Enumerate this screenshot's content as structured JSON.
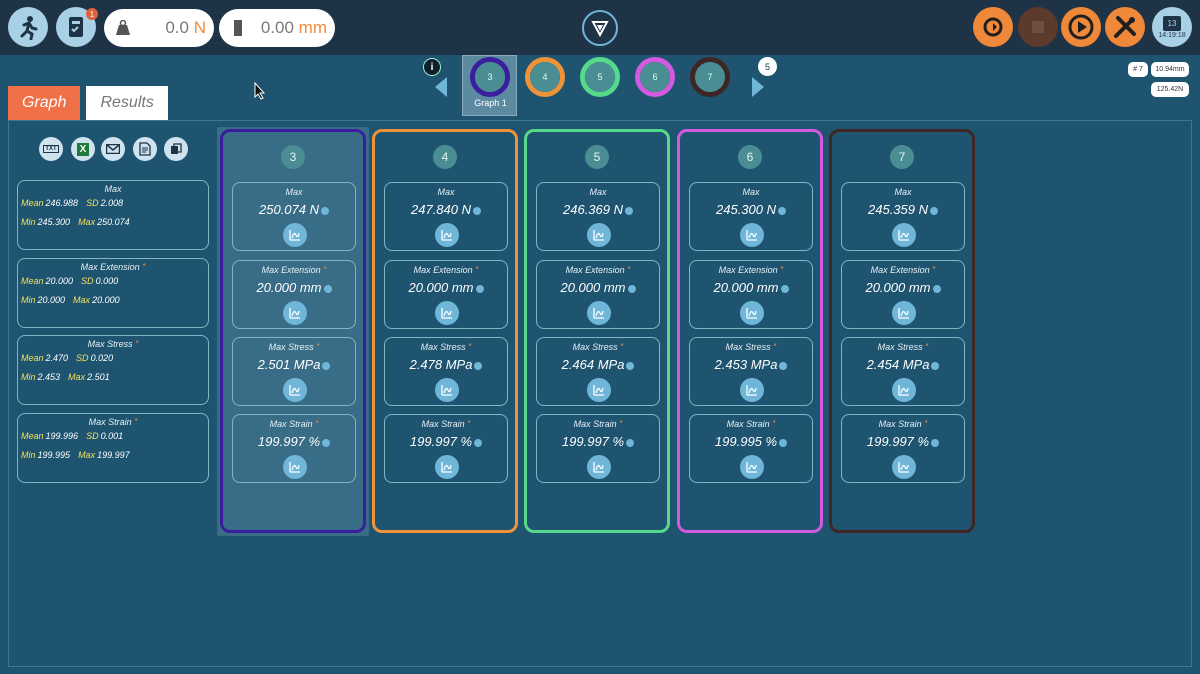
{
  "topbar": {
    "exit_icon": "running-exit-icon",
    "device_badge": "1",
    "force_value": "0.0",
    "force_unit": "N",
    "ext_value": "0.00",
    "ext_unit": "mm",
    "date_time": "14:19:18",
    "calendar_day": "13"
  },
  "graph_tabs": {
    "info": "i",
    "selected_label": "Graph 1",
    "count_badge": "5",
    "items": [
      {
        "label": "3",
        "color": "#3b1e9e"
      },
      {
        "label": "4",
        "color": "#ef9338"
      },
      {
        "label": "5",
        "color": "#55d98a"
      },
      {
        "label": "6",
        "color": "#d15ae0"
      },
      {
        "label": "7",
        "color": "#3d2624"
      }
    ]
  },
  "right_info": {
    "specimen": "# 7",
    "extension": "10.94mm",
    "force": "125.42N"
  },
  "tabs": {
    "graph": "Graph",
    "results": "Results"
  },
  "tools": {
    "txt": "TXT",
    "excel": "X"
  },
  "summary": [
    {
      "title": "Max",
      "star": "",
      "mean": "246.988",
      "sd": "2.008",
      "min": "245.300",
      "max": "250.074"
    },
    {
      "title": "Max Extension",
      "star": "*",
      "mean": "20.000",
      "sd": "0.000",
      "min": "20.000",
      "max": "20.000"
    },
    {
      "title": "Max Stress",
      "star": "*",
      "mean": "2.470",
      "sd": "0.020",
      "min": "2.453",
      "max": "2.501"
    },
    {
      "title": "Max Strain",
      "star": "*",
      "mean": "199.996",
      "sd": "0.001",
      "min": "199.995",
      "max": "199.997"
    }
  ],
  "labels": {
    "mean": "Mean",
    "sd": "SD",
    "min": "Min",
    "max": "Max"
  },
  "columns": [
    {
      "id": "3",
      "color": "#3b1e9e",
      "values": [
        "250.074 N",
        "20.000 mm",
        "2.501 MPa",
        "199.997 %"
      ]
    },
    {
      "id": "4",
      "color": "#ef9338",
      "values": [
        "247.840 N",
        "20.000 mm",
        "2.478 MPa",
        "199.997 %"
      ]
    },
    {
      "id": "5",
      "color": "#55d98a",
      "values": [
        "246.369 N",
        "20.000 mm",
        "2.464 MPa",
        "199.997 %"
      ]
    },
    {
      "id": "6",
      "color": "#d15ae0",
      "values": [
        "245.300 N",
        "20.000 mm",
        "2.453 MPa",
        "199.995 %"
      ]
    },
    {
      "id": "7",
      "color": "#3d2624",
      "values": [
        "245.359 N",
        "20.000 mm",
        "2.454 MPa",
        "199.997 %"
      ]
    }
  ],
  "result_titles": [
    "Max",
    "Max Extension",
    "Max Stress",
    "Max Strain"
  ]
}
